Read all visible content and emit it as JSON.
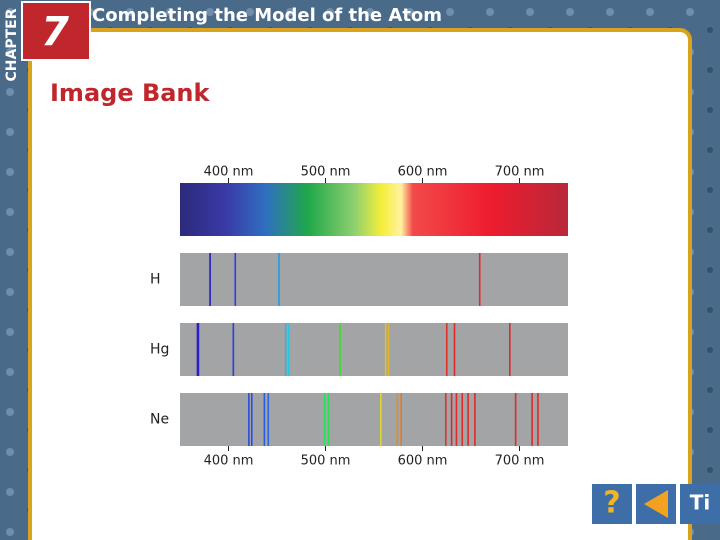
{
  "header": {
    "chapter_label": "CHAPTER",
    "chapter_number": "7",
    "title": "Completing the Model of the Atom"
  },
  "page_title": "Image Bank",
  "chart_data": {
    "type": "spectral-lines",
    "xlim": [
      350,
      750
    ],
    "xticks": [
      {
        "value": 400,
        "label": "400 nm"
      },
      {
        "value": 500,
        "label": "500 nm"
      },
      {
        "value": 600,
        "label": "600 nm"
      },
      {
        "value": 700,
        "label": "700 nm"
      }
    ],
    "series": [
      {
        "name": "H",
        "values": [
          381,
          407,
          452,
          659
        ]
      },
      {
        "name": "Hg",
        "values": [
          368,
          369,
          405,
          459,
          462,
          515,
          562,
          565,
          625,
          633,
          690
        ]
      },
      {
        "name": "Ne",
        "values": [
          421,
          424,
          437,
          441,
          499,
          503,
          557,
          574,
          578,
          624,
          630,
          635,
          641,
          647,
          654,
          696,
          713,
          719
        ]
      }
    ]
  },
  "footer": {
    "element_symbol": "Ti"
  }
}
